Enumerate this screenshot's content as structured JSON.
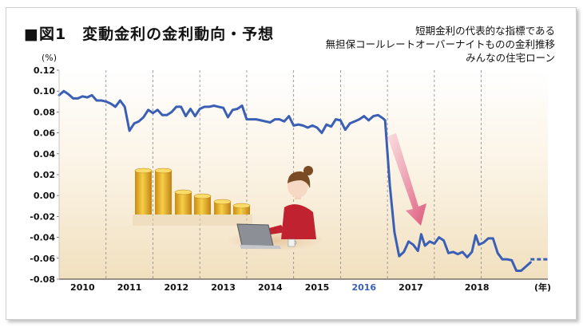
{
  "title": "■図1　変動金利の金利動向・予想",
  "subtitle_lines": [
    "短期金利の代表的な指標である",
    "無担保コールレートオーバーナイトものの金利推移",
    "みんなの住宅ローン"
  ],
  "colors": {
    "line": "#3a5fb5",
    "forecast_year": "#3a5fb5",
    "arrow": "#e0527a",
    "background_top": "#ffffff",
    "background_bottom": "#f3e3c4"
  },
  "chart_data": {
    "type": "line",
    "y_unit": "(%)",
    "x_unit": "(年)",
    "ylim": [
      -0.08,
      0.12
    ],
    "y_ticks": [
      "0.12",
      "0.10",
      "0.08",
      "0.06",
      "0.04",
      "0.02",
      "0.00",
      "-0.02",
      "-0.04",
      "-0.06",
      "-0.08"
    ],
    "year_labels": [
      "2010",
      "2011",
      "2012",
      "2013",
      "2014",
      "2015",
      "2016",
      "2017",
      "2018"
    ],
    "highlight_year": "2016",
    "grid": "vertical dashed year separators",
    "series": [
      {
        "actual": [
          [
            2009.5,
            0.096
          ],
          [
            2009.6,
            0.1
          ],
          [
            2009.7,
            0.097
          ],
          [
            2009.8,
            0.093
          ],
          [
            2009.9,
            0.093
          ],
          [
            2010.0,
            0.095
          ],
          [
            2010.1,
            0.094
          ],
          [
            2010.2,
            0.096
          ],
          [
            2010.3,
            0.091
          ],
          [
            2010.4,
            0.091
          ],
          [
            2010.5,
            0.09
          ],
          [
            2010.6,
            0.088
          ],
          [
            2010.7,
            0.085
          ],
          [
            2010.8,
            0.091
          ],
          [
            2010.9,
            0.085
          ],
          [
            2011.0,
            0.062
          ],
          [
            2011.1,
            0.069
          ],
          [
            2011.2,
            0.071
          ],
          [
            2011.3,
            0.075
          ],
          [
            2011.4,
            0.082
          ],
          [
            2011.5,
            0.079
          ],
          [
            2011.6,
            0.082
          ],
          [
            2011.7,
            0.077
          ],
          [
            2011.8,
            0.077
          ],
          [
            2011.9,
            0.08
          ],
          [
            2012.0,
            0.085
          ],
          [
            2012.1,
            0.085
          ],
          [
            2012.2,
            0.076
          ],
          [
            2012.3,
            0.083
          ],
          [
            2012.4,
            0.076
          ],
          [
            2012.5,
            0.083
          ],
          [
            2012.6,
            0.085
          ],
          [
            2012.7,
            0.085
          ],
          [
            2012.8,
            0.086
          ],
          [
            2012.9,
            0.085
          ],
          [
            2013.0,
            0.084
          ],
          [
            2013.1,
            0.075
          ],
          [
            2013.2,
            0.082
          ],
          [
            2013.3,
            0.083
          ],
          [
            2013.4,
            0.086
          ],
          [
            2013.5,
            0.073
          ],
          [
            2013.6,
            0.073
          ],
          [
            2013.7,
            0.073
          ],
          [
            2013.8,
            0.072
          ],
          [
            2013.9,
            0.071
          ],
          [
            2014.0,
            0.07
          ],
          [
            2014.1,
            0.073
          ],
          [
            2014.2,
            0.073
          ],
          [
            2014.3,
            0.071
          ],
          [
            2014.4,
            0.076
          ],
          [
            2014.5,
            0.067
          ],
          [
            2014.6,
            0.068
          ],
          [
            2014.7,
            0.067
          ],
          [
            2014.8,
            0.065
          ],
          [
            2014.9,
            0.067
          ],
          [
            2015.0,
            0.065
          ],
          [
            2015.1,
            0.06
          ],
          [
            2015.2,
            0.068
          ],
          [
            2015.3,
            0.066
          ],
          [
            2015.4,
            0.073
          ],
          [
            2015.5,
            0.072
          ],
          [
            2015.6,
            0.063
          ],
          [
            2015.7,
            0.069
          ],
          [
            2015.8,
            0.071
          ],
          [
            2015.9,
            0.073
          ],
          [
            2016.0,
            0.076
          ],
          [
            2016.1,
            0.072
          ],
          [
            2016.2,
            0.076
          ],
          [
            2016.3,
            0.077
          ],
          [
            2016.4,
            0.074
          ],
          [
            2016.45,
            0.072
          ],
          [
            2016.55,
            0.01
          ],
          [
            2016.65,
            -0.035
          ],
          [
            2016.75,
            -0.058
          ],
          [
            2016.85,
            -0.054
          ],
          [
            2016.95,
            -0.044
          ],
          [
            2017.05,
            -0.047
          ],
          [
            2017.15,
            -0.053
          ],
          [
            2017.22,
            -0.037
          ],
          [
            2017.3,
            -0.048
          ],
          [
            2017.4,
            -0.044
          ],
          [
            2017.5,
            -0.046
          ],
          [
            2017.6,
            -0.04
          ],
          [
            2017.7,
            -0.043
          ],
          [
            2017.8,
            -0.055
          ],
          [
            2017.9,
            -0.054
          ],
          [
            2018.0,
            -0.056
          ],
          [
            2018.1,
            -0.054
          ],
          [
            2018.2,
            -0.059
          ],
          [
            2018.3,
            -0.054
          ],
          [
            2018.38,
            -0.038
          ],
          [
            2018.45,
            -0.047
          ],
          [
            2018.55,
            -0.045
          ],
          [
            2018.65,
            -0.041
          ],
          [
            2018.75,
            -0.041
          ],
          [
            2018.85,
            -0.055
          ],
          [
            2018.95,
            -0.061
          ],
          [
            2019.05,
            -0.061
          ],
          [
            2019.15,
            -0.062
          ],
          [
            2019.25,
            -0.072
          ],
          [
            2019.35,
            -0.072
          ],
          [
            2019.45,
            -0.068
          ],
          [
            2019.55,
            -0.064
          ]
        ],
        "forecast": [
          [
            2019.55,
            -0.061
          ],
          [
            2019.65,
            -0.061
          ],
          [
            2019.75,
            -0.061
          ],
          [
            2019.85,
            -0.061
          ],
          [
            2019.92,
            -0.061
          ]
        ]
      }
    ]
  }
}
